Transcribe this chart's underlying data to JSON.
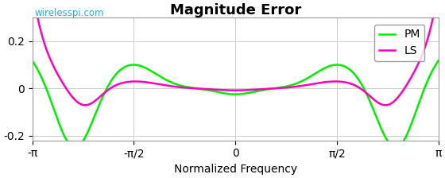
{
  "title": "Magnitude Error",
  "xlabel": "Normalized Frequency",
  "watermark": "wirelesspi.com",
  "watermark_color": "#29abe2",
  "xlim": [
    -3.14159265,
    3.14159265
  ],
  "ylim": [
    -0.22,
    0.3
  ],
  "yticks": [
    -0.2,
    0,
    0.2
  ],
  "xtick_labels": [
    "-π",
    "-π/2",
    "0",
    "π/2",
    "π"
  ],
  "xtick_vals": [
    -3.14159265,
    -1.5707963,
    0,
    1.5707963,
    3.14159265
  ],
  "pm_color": "#00ee00",
  "ls_color": "#ff00bb",
  "legend_labels": [
    "PM",
    "LS"
  ],
  "background_color": "#ffffff",
  "grid_color": "#cccccc",
  "title_fontsize": 13,
  "label_fontsize": 10,
  "tick_fontsize": 10,
  "line_width": 1.8
}
